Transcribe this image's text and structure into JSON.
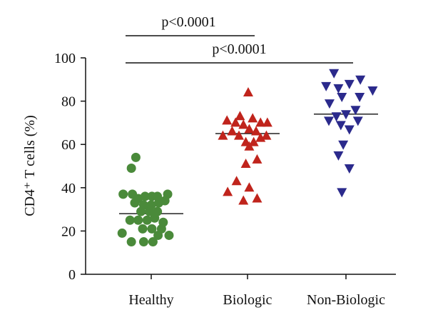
{
  "chart_data": {
    "type": "scatter",
    "ylabel": "CD4⁺ T cells (%)",
    "ylim": [
      0,
      100
    ],
    "yticks": [
      0,
      20,
      40,
      60,
      80,
      100
    ],
    "categories": [
      "Healthy",
      "Biologic",
      "Non-Biologic"
    ],
    "colors": {
      "Healthy": "#4a8a3a",
      "Biologic": "#c0241c",
      "Non-Biologic": "#2b2a8c"
    },
    "markers": {
      "Healthy": "circle",
      "Biologic": "triangle-up",
      "Non-Biologic": "triangle-down"
    },
    "series": [
      {
        "category": "Healthy",
        "median": 28,
        "points": [
          {
            "x": -0.45,
            "y": 54
          },
          {
            "x": -0.58,
            "y": 49
          },
          {
            "x": -0.82,
            "y": 37
          },
          {
            "x": -0.55,
            "y": 37
          },
          {
            "x": -0.38,
            "y": 35
          },
          {
            "x": -0.18,
            "y": 36
          },
          {
            "x": 0.02,
            "y": 36
          },
          {
            "x": 0.18,
            "y": 36
          },
          {
            "x": 0.48,
            "y": 37
          },
          {
            "x": -0.48,
            "y": 33
          },
          {
            "x": -0.22,
            "y": 32
          },
          {
            "x": 0.0,
            "y": 32
          },
          {
            "x": 0.22,
            "y": 33
          },
          {
            "x": 0.4,
            "y": 34
          },
          {
            "x": -0.3,
            "y": 29
          },
          {
            "x": -0.05,
            "y": 29
          },
          {
            "x": 0.18,
            "y": 29
          },
          {
            "x": -0.62,
            "y": 25
          },
          {
            "x": -0.38,
            "y": 25
          },
          {
            "x": -0.12,
            "y": 25
          },
          {
            "x": 0.1,
            "y": 26
          },
          {
            "x": 0.35,
            "y": 24
          },
          {
            "x": -0.25,
            "y": 21
          },
          {
            "x": 0.02,
            "y": 21
          },
          {
            "x": 0.3,
            "y": 21
          },
          {
            "x": -0.85,
            "y": 19
          },
          {
            "x": 0.2,
            "y": 18
          },
          {
            "x": 0.52,
            "y": 18
          },
          {
            "x": -0.58,
            "y": 15
          },
          {
            "x": -0.22,
            "y": 15
          },
          {
            "x": 0.05,
            "y": 15
          }
        ]
      },
      {
        "category": "Biologic",
        "median": 65,
        "points": [
          {
            "x": 0.02,
            "y": 84
          },
          {
            "x": -0.22,
            "y": 73
          },
          {
            "x": 0.15,
            "y": 72
          },
          {
            "x": -0.6,
            "y": 71
          },
          {
            "x": -0.35,
            "y": 70
          },
          {
            "x": 0.38,
            "y": 70
          },
          {
            "x": 0.58,
            "y": 70
          },
          {
            "x": -0.12,
            "y": 69
          },
          {
            "x": 0.05,
            "y": 67
          },
          {
            "x": -0.45,
            "y": 66
          },
          {
            "x": 0.25,
            "y": 66
          },
          {
            "x": -0.72,
            "y": 64
          },
          {
            "x": -0.25,
            "y": 64
          },
          {
            "x": 0.55,
            "y": 64
          },
          {
            "x": 0.38,
            "y": 63
          },
          {
            "x": -0.05,
            "y": 61
          },
          {
            "x": 0.18,
            "y": 61
          },
          {
            "x": 0.05,
            "y": 59
          },
          {
            "x": 0.28,
            "y": 53
          },
          {
            "x": -0.05,
            "y": 51
          },
          {
            "x": -0.32,
            "y": 43
          },
          {
            "x": 0.05,
            "y": 40
          },
          {
            "x": -0.58,
            "y": 38
          },
          {
            "x": 0.28,
            "y": 35
          },
          {
            "x": -0.12,
            "y": 34
          }
        ]
      },
      {
        "category": "Non-Biologic",
        "median": 74,
        "points": [
          {
            "x": -0.35,
            "y": 93
          },
          {
            "x": 0.42,
            "y": 90
          },
          {
            "x": 0.1,
            "y": 88
          },
          {
            "x": -0.58,
            "y": 87
          },
          {
            "x": -0.22,
            "y": 86
          },
          {
            "x": 0.78,
            "y": 85
          },
          {
            "x": -0.12,
            "y": 82
          },
          {
            "x": 0.4,
            "y": 82
          },
          {
            "x": -0.48,
            "y": 79
          },
          {
            "x": 0.28,
            "y": 76
          },
          {
            "x": 0.0,
            "y": 74
          },
          {
            "x": -0.28,
            "y": 73
          },
          {
            "x": -0.5,
            "y": 71
          },
          {
            "x": 0.35,
            "y": 71
          },
          {
            "x": -0.15,
            "y": 69
          },
          {
            "x": 0.1,
            "y": 67
          },
          {
            "x": -0.08,
            "y": 60
          },
          {
            "x": -0.22,
            "y": 55
          },
          {
            "x": 0.1,
            "y": 49
          },
          {
            "x": -0.12,
            "y": 38
          }
        ]
      }
    ],
    "annotations": [
      {
        "text": "p<0.0001",
        "from": "Healthy",
        "to": "Biologic",
        "level": 1
      },
      {
        "text": "p<0.0001",
        "from": "Healthy",
        "to": "Non-Biologic",
        "level": 0
      }
    ]
  }
}
